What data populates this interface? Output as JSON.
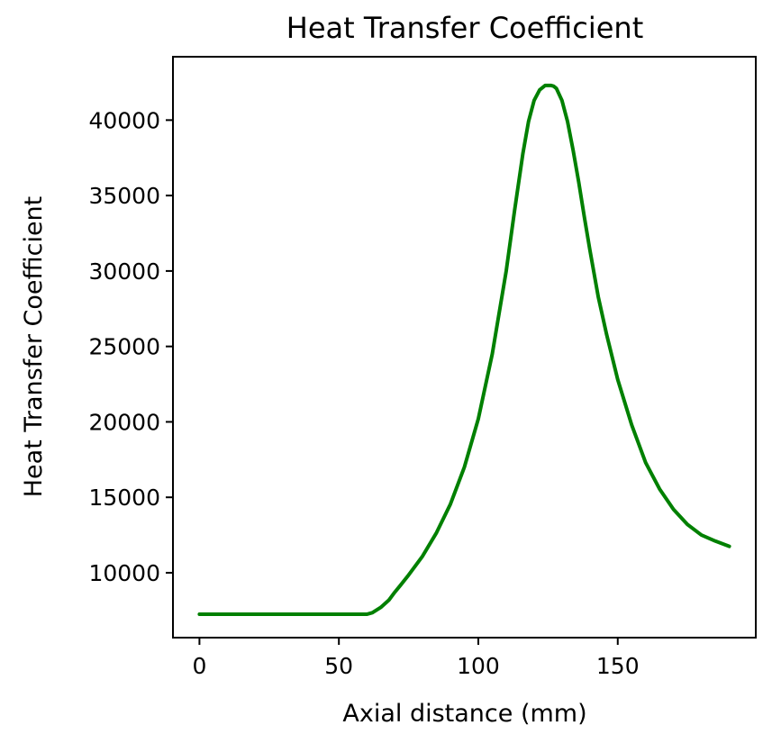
{
  "chart_data": {
    "type": "line",
    "title": "Heat Transfer Coefficient",
    "xlabel": "Axial distance (mm)",
    "ylabel": "Heat Transfer Coefficient",
    "xlim": [
      -9.5,
      199.5
    ],
    "ylim": [
      5700,
      44200
    ],
    "xticks": [
      0,
      50,
      100,
      150
    ],
    "yticks": [
      10000,
      15000,
      20000,
      25000,
      30000,
      35000,
      40000
    ],
    "grid": false,
    "legend": "none",
    "colors": {
      "line": "#008000",
      "axes": "#000000",
      "background": "#ffffff"
    },
    "series": [
      {
        "x": [
          0,
          10,
          20,
          30,
          40,
          50,
          60,
          62,
          65,
          68,
          70,
          72,
          75,
          80,
          85,
          90,
          95,
          100,
          105,
          110,
          113,
          116,
          118,
          120,
          122,
          124,
          126,
          127,
          128,
          130,
          132,
          134,
          136,
          138,
          140,
          143,
          146,
          150,
          155,
          160,
          165,
          170,
          175,
          180,
          185,
          190
        ],
        "y": [
          7250,
          7250,
          7250,
          7250,
          7250,
          7250,
          7250,
          7350,
          7700,
          8200,
          8700,
          9150,
          9850,
          11100,
          12650,
          14550,
          17000,
          20200,
          24500,
          30000,
          34000,
          37800,
          39900,
          41300,
          42000,
          42300,
          42300,
          42250,
          42100,
          41300,
          39900,
          38000,
          35900,
          33600,
          31400,
          28300,
          25800,
          22800,
          19800,
          17300,
          15550,
          14200,
          13200,
          12500,
          12100,
          11750
        ]
      }
    ]
  }
}
